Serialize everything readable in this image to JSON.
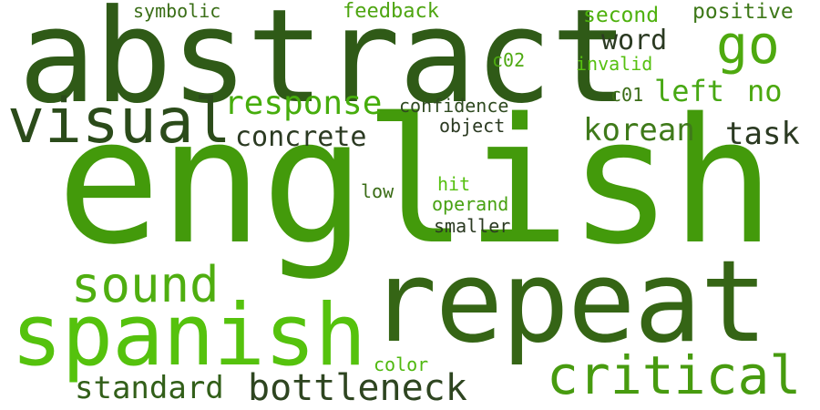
{
  "words": [
    {
      "text": "english",
      "color": "#439a0b"
    },
    {
      "text": "abstract",
      "color": "#2f5a17"
    },
    {
      "text": "repeat",
      "color": "#356515"
    },
    {
      "text": "spanish",
      "color": "#55c20d"
    },
    {
      "text": "visual",
      "color": "#2b4b1a"
    },
    {
      "text": "critical",
      "color": "#479b0f"
    },
    {
      "text": "sound",
      "color": "#4fae10"
    },
    {
      "text": "go",
      "color": "#4ea90f"
    },
    {
      "text": "bottleneck",
      "color": "#2e4520"
    },
    {
      "text": "response",
      "color": "#46ad0c"
    },
    {
      "text": "standard",
      "color": "#325f19"
    },
    {
      "text": "concrete",
      "color": "#2b3a22"
    },
    {
      "text": "korean",
      "color": "#3f7a1a"
    },
    {
      "text": "task",
      "color": "#2b3a22"
    },
    {
      "text": "left",
      "color": "#47a813"
    },
    {
      "text": "no",
      "color": "#4ba80f"
    },
    {
      "text": "word",
      "color": "#2b3a22"
    },
    {
      "text": "feedback",
      "color": "#4ea511"
    },
    {
      "text": "positive",
      "color": "#3d7818"
    },
    {
      "text": "second",
      "color": "#4eb10d"
    },
    {
      "text": "symbolic",
      "color": "#3a6e17"
    },
    {
      "text": "confidence",
      "color": "#2f4a20"
    },
    {
      "text": "object",
      "color": "#2b3a22"
    },
    {
      "text": "invalid",
      "color": "#56c010"
    },
    {
      "text": "c02",
      "color": "#4ea911"
    },
    {
      "text": "c01",
      "color": "#3a6c16"
    },
    {
      "text": "hit",
      "color": "#56c010"
    },
    {
      "text": "operand",
      "color": "#47a112"
    },
    {
      "text": "smaller",
      "color": "#2b3a22"
    },
    {
      "text": "low",
      "color": "#3a6c16"
    },
    {
      "text": "color",
      "color": "#4fb80f"
    }
  ]
}
